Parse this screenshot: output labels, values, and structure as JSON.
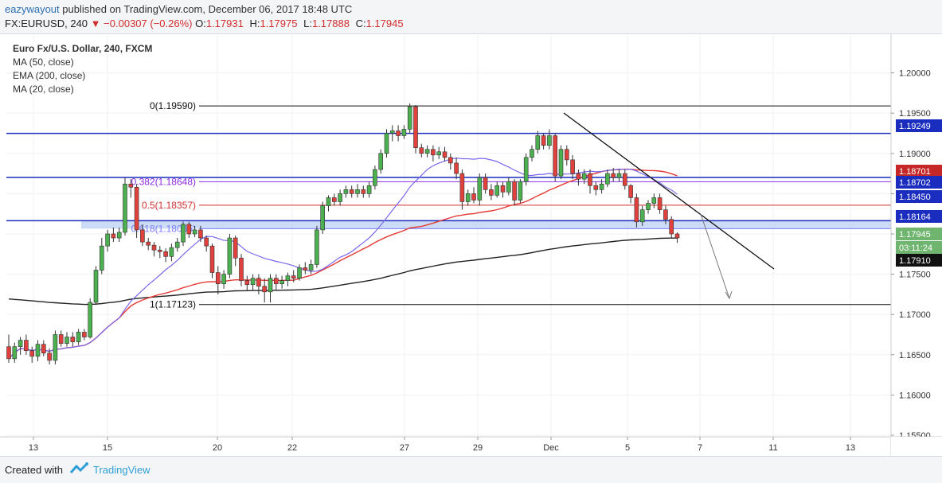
{
  "header": {
    "author": "eazywayout",
    "published_text": "published on TradingView.com, December 06, 2017 18:48 UTC",
    "symbol": "FX:EURUSD, 240",
    "change_arrow": "▼",
    "change": "−0.00307 (−0.26%)",
    "ohlc": [
      {
        "label": "O:",
        "value": "1.17931"
      },
      {
        "label": "H:",
        "value": "1.17975"
      },
      {
        "label": "L:",
        "value": "1.17888"
      },
      {
        "label": "C:",
        "value": "1.17945"
      }
    ]
  },
  "footer": {
    "created_with": "Created with",
    "brand": "TradingView"
  },
  "chart_data": {
    "type": "candlestick",
    "title": "Euro Fx/U.S. Dollar, 240, FXCM",
    "legend": [
      "MA (50, close)",
      "EMA (200, close)",
      "MA (20, close)"
    ],
    "ylim": [
      1.1548,
      1.2048
    ],
    "y_ticks": [
      "1.20000",
      "1.19500",
      "1.19000",
      "1.18500",
      "1.18000",
      "1.17500",
      "1.17000",
      "1.16500",
      "1.16000",
      "1.15500"
    ],
    "x_ticks": [
      "13",
      "15",
      "20",
      "22",
      "27",
      "29",
      "Dec",
      "5",
      "7",
      "11",
      "13"
    ],
    "colors": {
      "up": "#4caf50",
      "down": "#e0413d",
      "ma50": "#e53935",
      "ema200": "#222222",
      "ma20": "#7b68ee",
      "hline": "#1a2dbf",
      "zone": "#b8cdf2"
    },
    "fib_levels": [
      {
        "label": "0(1.19590)",
        "value": 1.1959,
        "color": "#111111"
      },
      {
        "label": "0.382(1.18648)",
        "value": 1.18648,
        "color": "#8a2be2"
      },
      {
        "label": "0.5(1.18357)",
        "value": 1.18357,
        "color": "#d32f2f"
      },
      {
        "label": "0.618(1.18065)",
        "value": 1.18065,
        "color": "#7b7bff"
      },
      {
        "label": "1(1.17123)",
        "value": 1.17123,
        "color": "#111111"
      }
    ],
    "horizontal_lines": [
      1.19249,
      1.18701,
      1.18164
    ],
    "zone": {
      "from": 1.18065,
      "to": 1.18164
    },
    "price_labels": [
      {
        "text": "1.19249",
        "value": 1.19249,
        "bg": "#1a2dbf"
      },
      {
        "text": "1.18701",
        "value": 1.18701,
        "bg": "#c62828"
      },
      {
        "text": "1.18702",
        "value": 1.18702,
        "bg": "#1a2dbf"
      },
      {
        "text": "1.18450",
        "value": 1.1845,
        "bg": "#1a2dbf"
      },
      {
        "text": "1.18164",
        "value": 1.18164,
        "bg": "#1a2dbf"
      },
      {
        "text": "1.17945",
        "value": 1.17945,
        "bg": "#6fb56f"
      },
      {
        "text": "03:11:24",
        "value": 1.1979,
        "bg": "#6fb56f"
      },
      {
        "text": "1.17910",
        "value": 1.1791,
        "bg": "#111111"
      }
    ],
    "candles": [
      [
        1.166,
        1.1645,
        1.1675,
        1.164
      ],
      [
        1.1645,
        1.166,
        1.1665,
        1.164
      ],
      [
        1.166,
        1.1668,
        1.1672,
        1.165
      ],
      [
        1.1668,
        1.1655,
        1.1675,
        1.165
      ],
      [
        1.1655,
        1.1648,
        1.166,
        1.164
      ],
      [
        1.1648,
        1.1663,
        1.1668,
        1.1642
      ],
      [
        1.1663,
        1.1652,
        1.1668,
        1.1648
      ],
      [
        1.1652,
        1.1643,
        1.1658,
        1.1638
      ],
      [
        1.1643,
        1.1675,
        1.168,
        1.1638
      ],
      [
        1.1675,
        1.1664,
        1.168,
        1.166
      ],
      [
        1.1664,
        1.1672,
        1.1678,
        1.166
      ],
      [
        1.1672,
        1.1666,
        1.1678,
        1.166
      ],
      [
        1.1666,
        1.1678,
        1.1682,
        1.1662
      ],
      [
        1.1678,
        1.1672,
        1.1682,
        1.1668
      ],
      [
        1.1672,
        1.1715,
        1.172,
        1.167
      ],
      [
        1.1715,
        1.1755,
        1.176,
        1.1712
      ],
      [
        1.1755,
        1.1785,
        1.1795,
        1.175
      ],
      [
        1.1785,
        1.18,
        1.1805,
        1.1778
      ],
      [
        1.18,
        1.1795,
        1.1808,
        1.179
      ],
      [
        1.1795,
        1.1802,
        1.1808,
        1.179
      ],
      [
        1.1802,
        1.1862,
        1.187,
        1.1798
      ],
      [
        1.1862,
        1.1858,
        1.1868,
        1.1845
      ],
      [
        1.1858,
        1.1805,
        1.1862,
        1.1795
      ],
      [
        1.1805,
        1.179,
        1.1812,
        1.1785
      ],
      [
        1.179,
        1.1786,
        1.1795,
        1.178
      ],
      [
        1.1786,
        1.178,
        1.179,
        1.1772
      ],
      [
        1.178,
        1.1778,
        1.1785,
        1.177
      ],
      [
        1.1778,
        1.1772,
        1.1782,
        1.1765
      ],
      [
        1.1772,
        1.1783,
        1.1788,
        1.1766
      ],
      [
        1.1783,
        1.179,
        1.1795,
        1.1778
      ],
      [
        1.179,
        1.1812,
        1.1815,
        1.1785
      ],
      [
        1.1812,
        1.18,
        1.1815,
        1.1795
      ],
      [
        1.18,
        1.1805,
        1.181,
        1.1796
      ],
      [
        1.1805,
        1.1795,
        1.181,
        1.179
      ],
      [
        1.1795,
        1.1785,
        1.1798,
        1.1778
      ],
      [
        1.1785,
        1.1752,
        1.1788,
        1.1745
      ],
      [
        1.1752,
        1.1738,
        1.176,
        1.1725
      ],
      [
        1.1738,
        1.175,
        1.1755,
        1.1732
      ],
      [
        1.175,
        1.1795,
        1.18,
        1.1745
      ],
      [
        1.1795,
        1.177,
        1.1798,
        1.176
      ],
      [
        1.177,
        1.1742,
        1.1775,
        1.1735
      ],
      [
        1.1742,
        1.1737,
        1.1748,
        1.173
      ],
      [
        1.1737,
        1.1745,
        1.175,
        1.173
      ],
      [
        1.1745,
        1.1735,
        1.175,
        1.1725
      ],
      [
        1.1735,
        1.1728,
        1.1745,
        1.1715
      ],
      [
        1.1728,
        1.1745,
        1.175,
        1.1715
      ],
      [
        1.1745,
        1.1738,
        1.175,
        1.173
      ],
      [
        1.1738,
        1.1742,
        1.1748,
        1.1732
      ],
      [
        1.1742,
        1.1748,
        1.1752,
        1.1735
      ],
      [
        1.1748,
        1.1745,
        1.1755,
        1.174
      ],
      [
        1.1745,
        1.1758,
        1.1762,
        1.1742
      ],
      [
        1.1758,
        1.1755,
        1.1765,
        1.175
      ],
      [
        1.1755,
        1.1762,
        1.1768,
        1.175
      ],
      [
        1.1762,
        1.1805,
        1.181,
        1.1758
      ],
      [
        1.1805,
        1.1835,
        1.184,
        1.18
      ],
      [
        1.1835,
        1.1845,
        1.1848,
        1.1828
      ],
      [
        1.1845,
        1.184,
        1.185,
        1.1835
      ],
      [
        1.184,
        1.185,
        1.1855,
        1.1835
      ],
      [
        1.185,
        1.1855,
        1.186,
        1.1845
      ],
      [
        1.1855,
        1.185,
        1.186,
        1.1845
      ],
      [
        1.185,
        1.1855,
        1.1862,
        1.1845
      ],
      [
        1.1855,
        1.185,
        1.186,
        1.1845
      ],
      [
        1.185,
        1.186,
        1.1865,
        1.1845
      ],
      [
        1.186,
        1.188,
        1.1885,
        1.1855
      ],
      [
        1.188,
        1.19,
        1.1905,
        1.1875
      ],
      [
        1.19,
        1.1925,
        1.193,
        1.1895
      ],
      [
        1.1925,
        1.1928,
        1.1935,
        1.1915
      ],
      [
        1.1928,
        1.1922,
        1.1935,
        1.1915
      ],
      [
        1.1922,
        1.193,
        1.1935,
        1.1918
      ],
      [
        1.193,
        1.1958,
        1.1962,
        1.1925
      ],
      [
        1.1958,
        1.1907,
        1.196,
        1.19
      ],
      [
        1.1907,
        1.19,
        1.1912,
        1.1895
      ],
      [
        1.19,
        1.1905,
        1.191,
        1.1895
      ],
      [
        1.1905,
        1.1898,
        1.191,
        1.189
      ],
      [
        1.1898,
        1.1902,
        1.1908,
        1.1893
      ],
      [
        1.1902,
        1.1895,
        1.1908,
        1.189
      ],
      [
        1.1895,
        1.1888,
        1.19,
        1.188
      ],
      [
        1.1888,
        1.1875,
        1.1895,
        1.1868
      ],
      [
        1.1875,
        1.184,
        1.188,
        1.183
      ],
      [
        1.184,
        1.185,
        1.1855,
        1.1835
      ],
      [
        1.185,
        1.1842,
        1.1858,
        1.1838
      ],
      [
        1.1842,
        1.187,
        1.1875,
        1.1835
      ],
      [
        1.187,
        1.1855,
        1.1875,
        1.185
      ],
      [
        1.1855,
        1.1848,
        1.1862,
        1.1842
      ],
      [
        1.1848,
        1.186,
        1.1865,
        1.1845
      ],
      [
        1.186,
        1.1852,
        1.1865,
        1.1845
      ],
      [
        1.1852,
        1.1865,
        1.187,
        1.1848
      ],
      [
        1.1865,
        1.1842,
        1.1868,
        1.1835
      ],
      [
        1.1842,
        1.1865,
        1.1868,
        1.1838
      ],
      [
        1.1865,
        1.1895,
        1.19,
        1.186
      ],
      [
        1.1895,
        1.1905,
        1.191,
        1.189
      ],
      [
        1.1905,
        1.1922,
        1.1928,
        1.19
      ],
      [
        1.1922,
        1.191,
        1.1925,
        1.1905
      ],
      [
        1.191,
        1.1922,
        1.193,
        1.1905
      ],
      [
        1.1922,
        1.1872,
        1.1925,
        1.1865
      ],
      [
        1.1872,
        1.1905,
        1.191,
        1.1868
      ],
      [
        1.1905,
        1.1892,
        1.191,
        1.1885
      ],
      [
        1.1892,
        1.1875,
        1.1898,
        1.1868
      ],
      [
        1.1875,
        1.1868,
        1.188,
        1.186
      ],
      [
        1.1868,
        1.1875,
        1.188,
        1.1862
      ],
      [
        1.1875,
        1.186,
        1.188,
        1.185
      ],
      [
        1.186,
        1.1855,
        1.1865,
        1.1848
      ],
      [
        1.1855,
        1.1862,
        1.1868,
        1.185
      ],
      [
        1.1862,
        1.1875,
        1.188,
        1.1858
      ],
      [
        1.1875,
        1.187,
        1.1882,
        1.1865
      ],
      [
        1.187,
        1.1875,
        1.188,
        1.1865
      ],
      [
        1.1875,
        1.186,
        1.188,
        1.1855
      ],
      [
        1.186,
        1.1845,
        1.1862,
        1.1838
      ],
      [
        1.1845,
        1.1815,
        1.185,
        1.1808
      ],
      [
        1.1815,
        1.183,
        1.1835,
        1.181
      ],
      [
        1.183,
        1.1838,
        1.1842,
        1.1825
      ],
      [
        1.1838,
        1.1845,
        1.185,
        1.1832
      ],
      [
        1.1845,
        1.183,
        1.185,
        1.1825
      ],
      [
        1.183,
        1.1818,
        1.1835,
        1.1812
      ],
      [
        1.1818,
        1.18,
        1.1822,
        1.1795
      ],
      [
        1.18,
        1.1795,
        1.1802,
        1.1789
      ]
    ]
  }
}
